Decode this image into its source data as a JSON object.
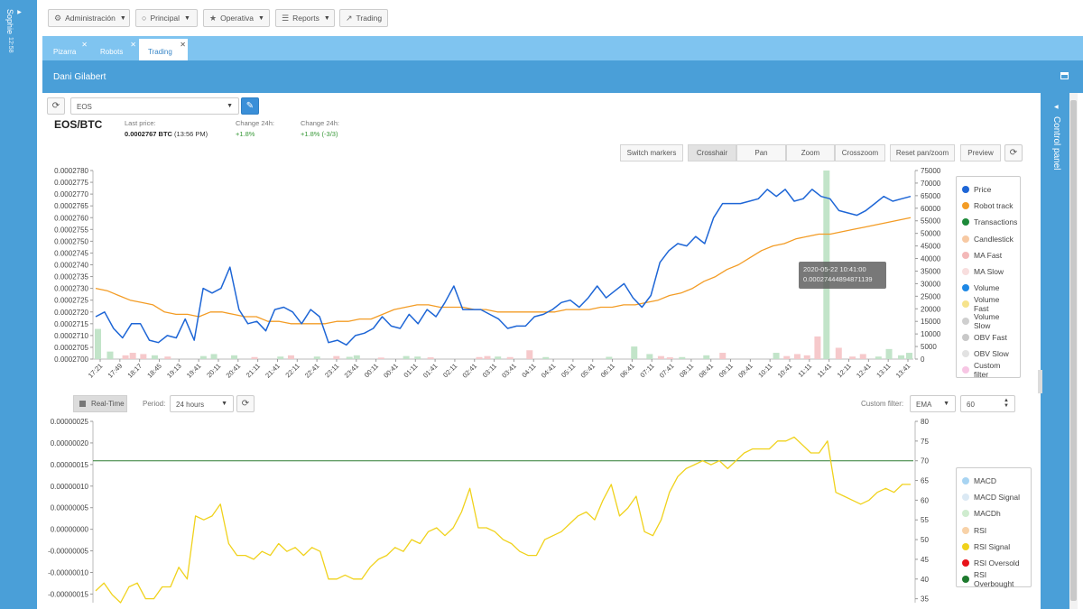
{
  "sidebar": {
    "user_name": "Sophie",
    "user_time": "12:58"
  },
  "topbar": {
    "menus": [
      {
        "label": "Administración",
        "icon": "gear-icon",
        "glyph": "⚙"
      },
      {
        "label": "Principal",
        "icon": "circle-icon",
        "glyph": "○"
      },
      {
        "label": "Operativa",
        "icon": "star-icon",
        "glyph": "★"
      },
      {
        "label": "Reports",
        "icon": "list-icon",
        "glyph": "☰"
      },
      {
        "label": "Trading",
        "icon": "line-chart-icon",
        "glyph": "↗"
      }
    ]
  },
  "tabs": [
    {
      "label": "Pizarra"
    },
    {
      "label": "Robots"
    },
    {
      "label": "Trading"
    }
  ],
  "section": {
    "title": "Dani Gilabert"
  },
  "right_panel": {
    "label": "Control panel"
  },
  "symbol": {
    "select_value": "EOS",
    "pair": "EOS/BTC"
  },
  "stats": {
    "last_price_label": "Last price:",
    "last_price_value": "0.0002767 BTC",
    "last_price_time": "(13:56 PM)",
    "change1_label": "Change 24h:",
    "change1_value": "+1.8%",
    "change2_label": "Change 24h:",
    "change2_value": "+1.8% (-3/3)"
  },
  "toolbar": {
    "buttons": [
      "Switch markers",
      "Crosshair",
      "Pan",
      "Zoom",
      "Crosszoom",
      "Reset pan/zoom",
      "Preview"
    ],
    "active": "Crosshair"
  },
  "tooltip": {
    "date": "2020-05-22 10:41:00",
    "value": "0.00027444894871139"
  },
  "legend_top": [
    {
      "label": "Price",
      "color": "#1e66d6"
    },
    {
      "label": "Robot track",
      "color": "#f39c25"
    },
    {
      "label": "Transactions",
      "color": "#1e8a3a"
    },
    {
      "label": "Candlestick",
      "color": "#f7c9a3"
    },
    {
      "label": "MA Fast",
      "color": "#f3b8b8"
    },
    {
      "label": "MA Slow",
      "color": "#f8dede"
    },
    {
      "label": "Volume",
      "color": "#1e88e5"
    },
    {
      "label": "Volume Fast",
      "color": "#f6e38c"
    },
    {
      "label": "Volume Slow",
      "color": "#cfcfcf"
    },
    {
      "label": "OBV Fast",
      "color": "#c8c8c8"
    },
    {
      "label": "OBV Slow",
      "color": "#e2e2e2"
    },
    {
      "label": "Custom filter",
      "color": "#f7c6e4"
    }
  ],
  "controls2": {
    "realtime_label": "Real-Time",
    "period_label": "Period:",
    "period_value": "24 hours",
    "custom_filter_label": "Custom filter:",
    "filter_type": "EMA",
    "filter_value": "60"
  },
  "legend_bottom": [
    {
      "label": "MACD",
      "color": "#a8d4f2"
    },
    {
      "label": "MACD Signal",
      "color": "#dbe9f4"
    },
    {
      "label": "MACDh",
      "color": "#cfeccf"
    },
    {
      "label": "RSI",
      "color": "#f8d2a8"
    },
    {
      "label": "RSI Signal",
      "color": "#f0d21c"
    },
    {
      "label": "RSI Oversold",
      "color": "#e8141a"
    },
    {
      "label": "RSI Overbought",
      "color": "#1e7a2e"
    }
  ],
  "chart_data": [
    {
      "type": "line",
      "x_ticks": [
        "17:21",
        "17:49",
        "18:17",
        "18:45",
        "19:13",
        "19:41",
        "20:11",
        "20:41",
        "21:11",
        "21:41",
        "22:11",
        "22:41",
        "23:11",
        "23:41",
        "00:11",
        "00:41",
        "01:11",
        "01:41",
        "02:11",
        "02:41",
        "03:11",
        "03:41",
        "04:11",
        "04:41",
        "05:11",
        "05:41",
        "06:11",
        "06:41",
        "07:11",
        "07:41",
        "08:11",
        "08:41",
        "09:11",
        "09:41",
        "10:11",
        "10:41",
        "11:11",
        "11:41",
        "12:11",
        "12:41",
        "13:11",
        "13:41"
      ],
      "y_ticks": [
        "0.0002700",
        "0.0002705",
        "0.0002710",
        "0.0002715",
        "0.0002720",
        "0.0002725",
        "0.0002730",
        "0.0002735",
        "0.0002740",
        "0.0002745",
        "0.0002750",
        "0.0002755",
        "0.0002760",
        "0.0002765",
        "0.0002770",
        "0.0002775",
        "0.0002780"
      ],
      "ylim": [
        0.00027,
        0.000278
      ],
      "y2_ticks": [
        "0",
        "5000",
        "10000",
        "15000",
        "20000",
        "25000",
        "30000",
        "35000",
        "40000",
        "45000",
        "50000",
        "55000",
        "60000",
        "65000",
        "70000",
        "75000"
      ],
      "y2lim": [
        0,
        75000
      ],
      "price": [
        0.0002718,
        0.000272,
        0.0002713,
        0.0002709,
        0.0002715,
        0.0002715,
        0.0002708,
        0.0002707,
        0.000271,
        0.0002709,
        0.0002717,
        0.0002708,
        0.000273,
        0.0002728,
        0.000273,
        0.0002739,
        0.0002721,
        0.0002715,
        0.0002716,
        0.0002712,
        0.0002721,
        0.0002722,
        0.000272,
        0.0002715,
        0.0002721,
        0.0002718,
        0.0002707,
        0.0002708,
        0.0002706,
        0.000271,
        0.0002711,
        0.0002713,
        0.0002718,
        0.0002714,
        0.0002713,
        0.0002719,
        0.0002715,
        0.0002721,
        0.0002718,
        0.0002724,
        0.0002731,
        0.0002721,
        0.0002721,
        0.0002721,
        0.0002719,
        0.0002717,
        0.0002713,
        0.0002714,
        0.0002714,
        0.0002718,
        0.0002719,
        0.0002721,
        0.0002724,
        0.0002725,
        0.0002722,
        0.0002726,
        0.0002731,
        0.0002726,
        0.0002729,
        0.0002732,
        0.0002726,
        0.0002722,
        0.0002727,
        0.0002741,
        0.0002746,
        0.0002749,
        0.0002748,
        0.0002752,
        0.0002749,
        0.000276,
        0.0002766,
        0.0002766,
        0.0002766,
        0.0002767,
        0.0002768,
        0.0002772,
        0.0002769,
        0.0002772,
        0.0002767,
        0.0002768,
        0.0002772,
        0.0002769,
        0.0002768,
        0.0002763,
        0.0002762,
        0.0002761,
        0.0002763,
        0.0002766,
        0.0002769,
        0.0002767,
        0.0002768,
        0.0002769
      ],
      "robot_track": [
        0.000273,
        0.0002729,
        0.0002727,
        0.0002725,
        0.0002724,
        0.0002723,
        0.000272,
        0.0002719,
        0.0002719,
        0.0002718,
        0.000272,
        0.000272,
        0.0002719,
        0.0002718,
        0.0002718,
        0.0002716,
        0.0002716,
        0.0002715,
        0.0002715,
        0.0002715,
        0.0002715,
        0.0002716,
        0.0002716,
        0.0002717,
        0.0002717,
        0.0002719,
        0.0002721,
        0.0002722,
        0.0002723,
        0.0002723,
        0.0002722,
        0.0002722,
        0.0002722,
        0.0002721,
        0.0002721,
        0.000272,
        0.000272,
        0.000272,
        0.000272,
        0.000272,
        0.000272,
        0.0002721,
        0.0002721,
        0.0002721,
        0.0002722,
        0.0002722,
        0.0002723,
        0.0002723,
        0.0002724,
        0.0002725,
        0.0002727,
        0.0002728,
        0.000273,
        0.0002733,
        0.0002735,
        0.0002738,
        0.000274,
        0.0002743,
        0.0002746,
        0.0002748,
        0.0002749,
        0.0002751,
        0.0002752,
        0.0002753,
        0.0002753,
        0.0002754,
        0.0002755,
        0.0002756,
        0.0002757,
        0.0002758,
        0.0002759,
        0.000276
      ],
      "volume_bars": [
        {
          "x": 0.0,
          "v": 12000,
          "c": "g"
        },
        {
          "x": 0.015,
          "v": 3000,
          "c": "g"
        },
        {
          "x": 0.034,
          "v": 1500,
          "c": "r"
        },
        {
          "x": 0.043,
          "v": 2500,
          "c": "r"
        },
        {
          "x": 0.056,
          "v": 2000,
          "c": "r"
        },
        {
          "x": 0.07,
          "v": 1500,
          "c": "g"
        },
        {
          "x": 0.086,
          "v": 1000,
          "c": "r"
        },
        {
          "x": 0.13,
          "v": 1200,
          "c": "g"
        },
        {
          "x": 0.143,
          "v": 2000,
          "c": "g"
        },
        {
          "x": 0.168,
          "v": 1500,
          "c": "g"
        },
        {
          "x": 0.193,
          "v": 800,
          "c": "r"
        },
        {
          "x": 0.225,
          "v": 1000,
          "c": "g"
        },
        {
          "x": 0.238,
          "v": 1500,
          "c": "r"
        },
        {
          "x": 0.27,
          "v": 1000,
          "c": "g"
        },
        {
          "x": 0.294,
          "v": 1200,
          "c": "r"
        },
        {
          "x": 0.31,
          "v": 900,
          "c": "g"
        },
        {
          "x": 0.319,
          "v": 1500,
          "c": "g"
        },
        {
          "x": 0.349,
          "v": 600,
          "c": "r"
        },
        {
          "x": 0.38,
          "v": 1200,
          "c": "g"
        },
        {
          "x": 0.394,
          "v": 1000,
          "c": "g"
        },
        {
          "x": 0.41,
          "v": 700,
          "c": "r"
        },
        {
          "x": 0.47,
          "v": 800,
          "c": "r"
        },
        {
          "x": 0.48,
          "v": 1200,
          "c": "r"
        },
        {
          "x": 0.493,
          "v": 1000,
          "c": "g"
        },
        {
          "x": 0.508,
          "v": 800,
          "c": "r"
        },
        {
          "x": 0.532,
          "v": 3500,
          "c": "r"
        },
        {
          "x": 0.552,
          "v": 800,
          "c": "g"
        },
        {
          "x": 0.63,
          "v": 900,
          "c": "g"
        },
        {
          "x": 0.661,
          "v": 5000,
          "c": "g"
        },
        {
          "x": 0.68,
          "v": 2000,
          "c": "g"
        },
        {
          "x": 0.694,
          "v": 1200,
          "c": "r"
        },
        {
          "x": 0.705,
          "v": 700,
          "c": "r"
        },
        {
          "x": 0.72,
          "v": 800,
          "c": "g"
        },
        {
          "x": 0.75,
          "v": 1500,
          "c": "g"
        },
        {
          "x": 0.77,
          "v": 2500,
          "c": "r"
        },
        {
          "x": 0.836,
          "v": 2500,
          "c": "g"
        },
        {
          "x": 0.849,
          "v": 1200,
          "c": "r"
        },
        {
          "x": 0.862,
          "v": 2000,
          "c": "r"
        },
        {
          "x": 0.874,
          "v": 1500,
          "c": "r"
        },
        {
          "x": 0.887,
          "v": 9000,
          "c": "r"
        },
        {
          "x": 0.898,
          "v": 75000,
          "c": "g"
        },
        {
          "x": 0.913,
          "v": 4500,
          "c": "r"
        },
        {
          "x": 0.93,
          "v": 1000,
          "c": "r"
        },
        {
          "x": 0.943,
          "v": 2000,
          "c": "r"
        },
        {
          "x": 0.962,
          "v": 1000,
          "c": "g"
        },
        {
          "x": 0.975,
          "v": 4000,
          "c": "g"
        },
        {
          "x": 0.99,
          "v": 1500,
          "c": "g"
        },
        {
          "x": 1.0,
          "v": 2500,
          "c": "g"
        }
      ]
    },
    {
      "type": "line",
      "y_ticks": [
        "-0.00000015",
        "-0.00000010",
        "-0.00000005",
        "0.00000000",
        "0.00000005",
        "0.00000010",
        "0.00000015",
        "0.00000020",
        "0.00000025"
      ],
      "ylim": [
        -1.7e-07,
        2.5e-07
      ],
      "y2_ticks": [
        "35",
        "40",
        "45",
        "50",
        "55",
        "60",
        "65",
        "70",
        "75",
        "80"
      ],
      "y2lim": [
        34,
        80
      ],
      "rsi_overbought": 70,
      "rsi_signal": [
        37,
        39,
        36,
        34,
        38,
        39,
        35,
        35,
        38,
        38,
        43,
        40,
        56,
        55,
        56,
        59,
        49,
        46,
        46,
        45,
        47,
        46,
        49,
        47,
        48,
        46,
        48,
        47,
        40,
        40,
        41,
        40,
        40,
        43,
        45,
        46,
        48,
        47,
        50,
        49,
        52,
        53,
        51,
        53,
        57,
        63,
        53,
        53,
        52,
        50,
        49,
        47,
        46,
        46,
        50,
        51,
        52,
        54,
        56,
        57,
        55,
        60,
        64,
        56,
        58,
        61,
        52,
        51,
        55,
        62,
        66,
        68,
        69,
        70,
        69,
        70,
        68,
        70,
        72,
        73,
        73,
        73,
        75,
        75,
        76,
        74,
        72,
        72,
        75,
        62,
        61,
        60,
        59,
        60,
        62,
        63,
        62,
        64,
        64
      ]
    }
  ]
}
